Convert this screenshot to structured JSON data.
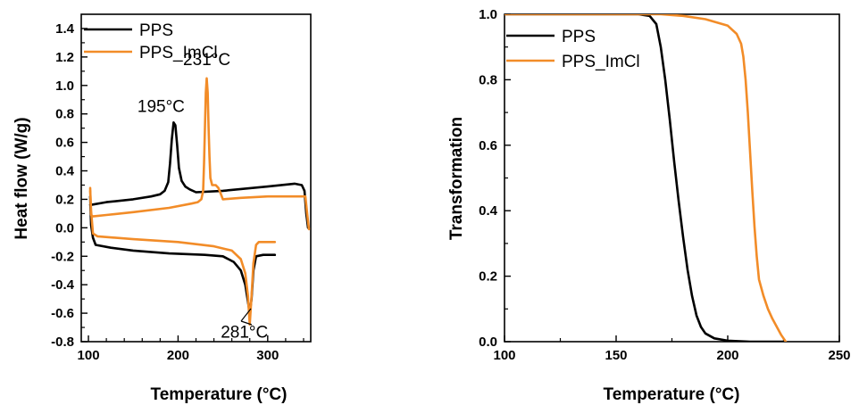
{
  "colors": {
    "PPS": "#000000",
    "PPS_ImCl": "#f28c28"
  },
  "chart_data": [
    {
      "type": "line",
      "title": "",
      "xlabel": "Temperature (°C)",
      "ylabel": "Heat flow (W/g)",
      "xlim": [
        92,
        348
      ],
      "ylim": [
        -0.8,
        1.5
      ],
      "xticks": [
        100,
        200,
        300
      ],
      "yticks": [
        -0.8,
        -0.6,
        -0.4,
        -0.2,
        0.0,
        0.2,
        0.4,
        0.6,
        0.8,
        1.0,
        1.2,
        1.4
      ],
      "ytick_labels": [
        "-0.8",
        "-0.6",
        "-0.4",
        "-0.2",
        "0.0",
        "0.2",
        "0.4",
        "0.6",
        "0.8",
        "1.0",
        "1.2",
        "1.4"
      ],
      "legend": {
        "position": "top-left",
        "entries": [
          "PPS",
          "PPS_ImCl"
        ]
      },
      "annotations": [
        {
          "text": "195°C",
          "x": 195,
          "y": 0.74
        },
        {
          "text": "231°C",
          "x": 232,
          "y": 1.05
        },
        {
          "text": "281°C",
          "x": 280,
          "y": -0.64
        }
      ],
      "series": [
        {
          "name": "PPS",
          "color": "#000000",
          "segments": [
            [
              [
                102,
                0.16
              ],
              [
                120,
                0.18
              ],
              [
                150,
                0.2
              ],
              [
                170,
                0.22
              ],
              [
                180,
                0.235
              ],
              [
                185,
                0.26
              ],
              [
                189,
                0.32
              ],
              [
                191,
                0.45
              ],
              [
                193,
                0.62
              ],
              [
                195,
                0.74
              ],
              [
                197,
                0.72
              ],
              [
                199,
                0.58
              ],
              [
                201,
                0.42
              ],
              [
                204,
                0.33
              ],
              [
                208,
                0.29
              ],
              [
                213,
                0.27
              ],
              [
                220,
                0.25
              ],
              [
                250,
                0.26
              ],
              [
                300,
                0.29
              ],
              [
                330,
                0.31
              ],
              [
                338,
                0.3
              ],
              [
                341,
                0.26
              ],
              [
                343,
                0.1
              ],
              [
                345,
                0.0
              ]
            ],
            [
              [
                102,
                0.22
              ],
              [
                103,
                0.02
              ],
              [
                105,
                -0.07
              ],
              [
                108,
                -0.12
              ],
              [
                125,
                -0.14
              ],
              [
                150,
                -0.16
              ],
              [
                190,
                -0.18
              ],
              [
                230,
                -0.19
              ],
              [
                250,
                -0.2
              ],
              [
                262,
                -0.24
              ],
              [
                270,
                -0.3
              ],
              [
                275,
                -0.4
              ],
              [
                278,
                -0.52
              ],
              [
                280,
                -0.6
              ],
              [
                282,
                -0.5
              ],
              [
                284,
                -0.3
              ],
              [
                287,
                -0.2
              ],
              [
                295,
                -0.19
              ],
              [
                308,
                -0.19
              ]
            ]
          ]
        },
        {
          "name": "PPS_ImCl",
          "color": "#f28c28",
          "segments": [
            [
              [
                102,
                0.28
              ],
              [
                103,
                0.09
              ],
              [
                105,
                0.08
              ],
              [
                120,
                0.09
              ],
              [
                150,
                0.11
              ],
              [
                190,
                0.14
              ],
              [
                215,
                0.17
              ],
              [
                222,
                0.18
              ],
              [
                226,
                0.2
              ],
              [
                228,
                0.26
              ],
              [
                229,
                0.45
              ],
              [
                230,
                0.7
              ],
              [
                231,
                0.95
              ],
              [
                232,
                1.05
              ],
              [
                233,
                0.95
              ],
              [
                234,
                0.7
              ],
              [
                235,
                0.5
              ],
              [
                236,
                0.35
              ],
              [
                238,
                0.3
              ],
              [
                242,
                0.3
              ],
              [
                245,
                0.28
              ],
              [
                247,
                0.25
              ],
              [
                250,
                0.2
              ],
              [
                270,
                0.21
              ],
              [
                300,
                0.22
              ],
              [
                330,
                0.22
              ],
              [
                342,
                0.22
              ],
              [
                344,
                0.1
              ],
              [
                346,
                -0.01
              ]
            ],
            [
              [
                102,
                0.26
              ],
              [
                103,
                0.12
              ],
              [
                105,
                -0.04
              ],
              [
                110,
                -0.06
              ],
              [
                150,
                -0.08
              ],
              [
                200,
                -0.1
              ],
              [
                240,
                -0.13
              ],
              [
                260,
                -0.16
              ],
              [
                270,
                -0.22
              ],
              [
                275,
                -0.32
              ],
              [
                278,
                -0.48
              ],
              [
                280,
                -0.68
              ],
              [
                282,
                -0.48
              ],
              [
                284,
                -0.25
              ],
              [
                287,
                -0.12
              ],
              [
                290,
                -0.1
              ],
              [
                308,
                -0.1
              ]
            ]
          ]
        }
      ]
    },
    {
      "type": "line",
      "title": "",
      "xlabel": "Temperature (°C)",
      "ylabel": "Transformation",
      "xlim": [
        100,
        250
      ],
      "ylim": [
        0,
        1.0
      ],
      "xticks": [
        100,
        150,
        200,
        250
      ],
      "yticks": [
        0.0,
        0.2,
        0.4,
        0.6,
        0.8,
        1.0
      ],
      "ytick_labels": [
        "0.0",
        "0.2",
        "0.4",
        "0.6",
        "0.8",
        "1.0"
      ],
      "legend": {
        "position": "top-left",
        "entries": [
          "PPS",
          "PPS_ImCl"
        ]
      },
      "series": [
        {
          "name": "PPS",
          "color": "#000000",
          "segments": [
            [
              [
                100,
                1.0
              ],
              [
                160,
                1.0
              ],
              [
                165,
                0.995
              ],
              [
                168,
                0.97
              ],
              [
                170,
                0.9
              ],
              [
                172,
                0.8
              ],
              [
                174,
                0.68
              ],
              [
                176,
                0.55
              ],
              [
                178,
                0.43
              ],
              [
                180,
                0.32
              ],
              [
                182,
                0.22
              ],
              [
                184,
                0.14
              ],
              [
                186,
                0.08
              ],
              [
                188,
                0.045
              ],
              [
                190,
                0.025
              ],
              [
                194,
                0.01
              ],
              [
                200,
                0.003
              ],
              [
                210,
                0.0
              ],
              [
                225,
                0.0
              ]
            ]
          ]
        },
        {
          "name": "PPS_ImCl",
          "color": "#f28c28",
          "segments": [
            [
              [
                100,
                1.0
              ],
              [
                170,
                1.0
              ],
              [
                180,
                0.995
              ],
              [
                190,
                0.985
              ],
              [
                200,
                0.965
              ],
              [
                204,
                0.94
              ],
              [
                206,
                0.91
              ],
              [
                207,
                0.87
              ],
              [
                208,
                0.8
              ],
              [
                209,
                0.7
              ],
              [
                210,
                0.58
              ],
              [
                211,
                0.46
              ],
              [
                212,
                0.35
              ],
              [
                213,
                0.26
              ],
              [
                214,
                0.19
              ],
              [
                216,
                0.14
              ],
              [
                218,
                0.1
              ],
              [
                220,
                0.07
              ],
              [
                222,
                0.045
              ],
              [
                224,
                0.02
              ],
              [
                226,
                0.0
              ]
            ]
          ]
        }
      ]
    }
  ]
}
